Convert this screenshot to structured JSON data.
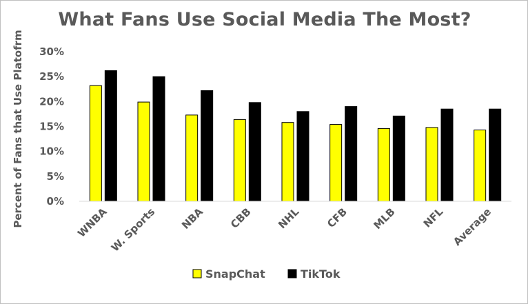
{
  "chart_data": {
    "type": "bar",
    "title": "What Fans Use Social Media The Most?",
    "ylabel": "Percent of Fans that Use Platofrm",
    "xlabel": "",
    "categories": [
      "WNBA",
      "W. Sports",
      "NBA",
      "CBB",
      "NHL",
      "CFB",
      "MLB",
      "NFL",
      "Average"
    ],
    "series": [
      {
        "name": "SnapChat",
        "color": "#ffff00",
        "values": [
          23.2,
          19.9,
          17.3,
          16.4,
          15.8,
          15.4,
          14.6,
          14.8,
          14.3
        ]
      },
      {
        "name": "TikTok",
        "color": "#000000",
        "values": [
          26.2,
          25.0,
          22.2,
          19.8,
          18.0,
          19.0,
          17.1,
          18.5,
          18.5
        ]
      }
    ],
    "ylim": [
      0,
      30
    ],
    "yticks": [
      {
        "value": 0,
        "label": "0%"
      },
      {
        "value": 5,
        "label": "5%"
      },
      {
        "value": 10,
        "label": "10%"
      },
      {
        "value": 15,
        "label": "15%"
      },
      {
        "value": 20,
        "label": "20%"
      },
      {
        "value": 25,
        "label": "25%"
      },
      {
        "value": 30,
        "label": "30%"
      }
    ],
    "grid": false,
    "legend": "bottom"
  }
}
